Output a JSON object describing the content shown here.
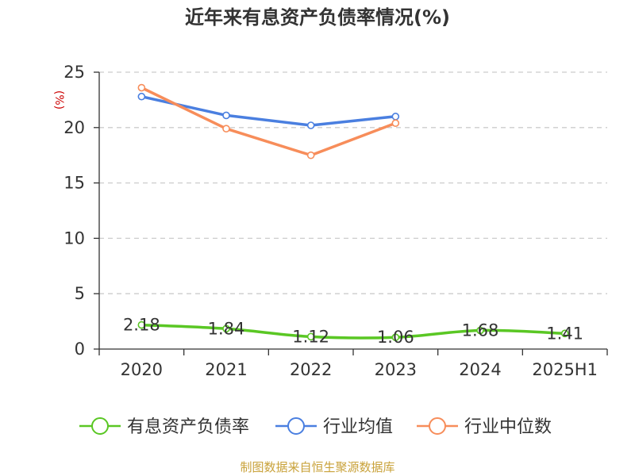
{
  "chart_data": {
    "type": "line",
    "title": "近年来有息资产负债率情况(%)",
    "ylabel": "(%)",
    "xlabel": "",
    "categories": [
      "2020",
      "2021",
      "2022",
      "2023",
      "2024",
      "2025H1"
    ],
    "ylim": [
      0,
      25
    ],
    "yticks": [
      0,
      5,
      10,
      15,
      20,
      25
    ],
    "grid": true,
    "legend_position": "bottom",
    "series": [
      {
        "name": "有息资产负债率",
        "values": [
          2.18,
          1.84,
          1.12,
          1.06,
          1.68,
          1.41
        ],
        "labels": [
          "2.18",
          "1.84",
          "1.12",
          "1.06",
          "1.68",
          "1.41"
        ],
        "color": "#5ac724",
        "smooth": true
      },
      {
        "name": "行业均值",
        "values": [
          22.8,
          21.1,
          20.2,
          21.0,
          null,
          null
        ],
        "color": "#4a7fe0"
      },
      {
        "name": "行业中位数",
        "values": [
          23.6,
          19.9,
          17.5,
          20.4,
          null,
          null
        ],
        "color": "#f78d5a"
      }
    ]
  },
  "source": "制图数据来自恒生聚源数据库",
  "colors": {
    "title": "#333333",
    "ylabel": "#cc0000",
    "axis": "#333333",
    "grid": "#cccccc",
    "source": "#c9a23a"
  }
}
